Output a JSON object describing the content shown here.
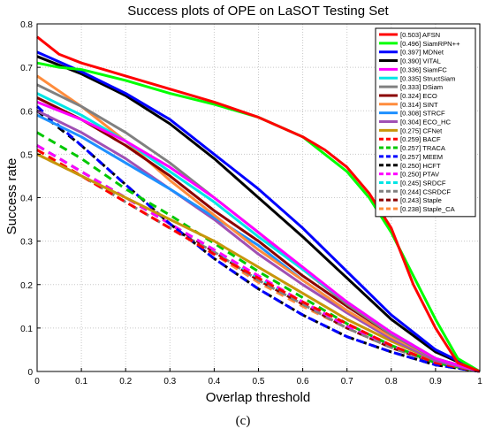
{
  "caption": "(c)",
  "chart_data": {
    "type": "line",
    "title": "Success plots of OPE on LaSOT Testing Set",
    "xlabel": "Overlap threshold",
    "ylabel": "Success rate",
    "xlim": [
      0,
      1
    ],
    "ylim": [
      0,
      0.8
    ],
    "xticks": [
      "0",
      "0.1",
      "0.2",
      "0.3",
      "0.4",
      "0.5",
      "0.6",
      "0.7",
      "0.8",
      "0.9",
      "1"
    ],
    "yticks": [
      "0",
      "0.1",
      "0.2",
      "0.3",
      "0.4",
      "0.5",
      "0.6",
      "0.7",
      "0.8"
    ],
    "grid": true,
    "legend_position": "top-right",
    "series": [
      {
        "name": "[0.503] AFSN",
        "color": "#ff0000",
        "dash": "solid",
        "x": [
          0,
          0.05,
          0.1,
          0.2,
          0.3,
          0.4,
          0.5,
          0.6,
          0.65,
          0.7,
          0.75,
          0.8,
          0.85,
          0.9,
          0.95,
          1
        ],
        "y": [
          0.77,
          0.73,
          0.71,
          0.68,
          0.65,
          0.62,
          0.585,
          0.54,
          0.51,
          0.47,
          0.41,
          0.33,
          0.2,
          0.1,
          0.02,
          0
        ]
      },
      {
        "name": "[0.496] SiamRPN++",
        "color": "#00ff00",
        "dash": "solid",
        "x": [
          0,
          0.05,
          0.1,
          0.2,
          0.3,
          0.4,
          0.5,
          0.6,
          0.65,
          0.7,
          0.75,
          0.8,
          0.85,
          0.9,
          0.95,
          1
        ],
        "y": [
          0.71,
          0.7,
          0.695,
          0.67,
          0.64,
          0.615,
          0.585,
          0.54,
          0.5,
          0.46,
          0.4,
          0.32,
          0.22,
          0.12,
          0.03,
          0
        ]
      },
      {
        "name": "[0.397] MDNet",
        "color": "#0000ff",
        "dash": "solid",
        "x": [
          0,
          0.1,
          0.2,
          0.3,
          0.4,
          0.5,
          0.6,
          0.7,
          0.8,
          0.9,
          1
        ],
        "y": [
          0.735,
          0.69,
          0.64,
          0.58,
          0.5,
          0.42,
          0.33,
          0.23,
          0.13,
          0.05,
          0
        ]
      },
      {
        "name": "[0.390] VITAL",
        "color": "#000000",
        "dash": "solid",
        "x": [
          0,
          0.1,
          0.2,
          0.3,
          0.4,
          0.5,
          0.6,
          0.7,
          0.8,
          0.9,
          1
        ],
        "y": [
          0.725,
          0.685,
          0.635,
          0.57,
          0.49,
          0.4,
          0.31,
          0.215,
          0.12,
          0.045,
          0
        ]
      },
      {
        "name": "[0.336] SiamFC",
        "color": "#ff00ff",
        "dash": "solid",
        "x": [
          0,
          0.1,
          0.2,
          0.3,
          0.4,
          0.5,
          0.6,
          0.7,
          0.8,
          0.9,
          1
        ],
        "y": [
          0.62,
          0.58,
          0.53,
          0.47,
          0.4,
          0.32,
          0.24,
          0.16,
          0.09,
          0.03,
          0
        ]
      },
      {
        "name": "[0.335] StructSiam",
        "color": "#00e5e5",
        "dash": "solid",
        "x": [
          0,
          0.1,
          0.2,
          0.3,
          0.4,
          0.5,
          0.6,
          0.7,
          0.8,
          0.9,
          1
        ],
        "y": [
          0.64,
          0.59,
          0.53,
          0.46,
          0.39,
          0.31,
          0.235,
          0.16,
          0.09,
          0.03,
          0
        ]
      },
      {
        "name": "[0.333] DSiam",
        "color": "#808080",
        "dash": "solid",
        "x": [
          0,
          0.1,
          0.2,
          0.3,
          0.4,
          0.5,
          0.6,
          0.7,
          0.8,
          0.9,
          1
        ],
        "y": [
          0.66,
          0.61,
          0.55,
          0.48,
          0.4,
          0.32,
          0.235,
          0.155,
          0.085,
          0.03,
          0
        ]
      },
      {
        "name": "[0.324] ECO",
        "color": "#8b0000",
        "dash": "solid",
        "x": [
          0,
          0.1,
          0.2,
          0.3,
          0.4,
          0.5,
          0.6,
          0.7,
          0.8,
          0.9,
          1
        ],
        "y": [
          0.63,
          0.58,
          0.52,
          0.45,
          0.37,
          0.3,
          0.22,
          0.15,
          0.085,
          0.03,
          0
        ]
      },
      {
        "name": "[0.314] SINT",
        "color": "#ff8c3c",
        "dash": "solid",
        "x": [
          0,
          0.1,
          0.2,
          0.3,
          0.4,
          0.5,
          0.6,
          0.7,
          0.8,
          0.9,
          1
        ],
        "y": [
          0.68,
          0.61,
          0.53,
          0.44,
          0.36,
          0.28,
          0.21,
          0.14,
          0.08,
          0.03,
          0
        ]
      },
      {
        "name": "[0.308] STRCF",
        "color": "#1e90ff",
        "dash": "solid",
        "x": [
          0,
          0.1,
          0.2,
          0.3,
          0.4,
          0.5,
          0.6,
          0.7,
          0.8,
          0.9,
          1
        ],
        "y": [
          0.59,
          0.54,
          0.48,
          0.42,
          0.355,
          0.29,
          0.21,
          0.14,
          0.08,
          0.03,
          0
        ]
      },
      {
        "name": "[0.304] ECO_HC",
        "color": "#a050b4",
        "dash": "solid",
        "x": [
          0,
          0.1,
          0.2,
          0.3,
          0.4,
          0.5,
          0.6,
          0.7,
          0.8,
          0.9,
          1
        ],
        "y": [
          0.6,
          0.55,
          0.49,
          0.42,
          0.35,
          0.27,
          0.2,
          0.135,
          0.075,
          0.025,
          0
        ]
      },
      {
        "name": "[0.275] CFNet",
        "color": "#c8960a",
        "dash": "solid",
        "x": [
          0,
          0.1,
          0.2,
          0.3,
          0.4,
          0.5,
          0.6,
          0.7,
          0.8,
          0.9,
          1
        ],
        "y": [
          0.5,
          0.45,
          0.4,
          0.35,
          0.3,
          0.24,
          0.18,
          0.12,
          0.07,
          0.025,
          0
        ]
      },
      {
        "name": "[0.259] BACF",
        "color": "#ff0000",
        "dash": "dashed",
        "x": [
          0,
          0.1,
          0.2,
          0.3,
          0.4,
          0.5,
          0.6,
          0.7,
          0.8,
          0.9,
          1
        ],
        "y": [
          0.51,
          0.45,
          0.39,
          0.33,
          0.27,
          0.215,
          0.16,
          0.11,
          0.06,
          0.02,
          0
        ]
      },
      {
        "name": "[0.257] TRACA",
        "color": "#00c800",
        "dash": "dashed",
        "x": [
          0,
          0.1,
          0.2,
          0.3,
          0.4,
          0.5,
          0.6,
          0.7,
          0.8,
          0.9,
          1
        ],
        "y": [
          0.55,
          0.49,
          0.42,
          0.36,
          0.295,
          0.23,
          0.17,
          0.11,
          0.06,
          0.02,
          0
        ]
      },
      {
        "name": "[0.257] MEEM",
        "color": "#0000ff",
        "dash": "dashed",
        "x": [
          0,
          0.1,
          0.2,
          0.3,
          0.4,
          0.5,
          0.6,
          0.7,
          0.8,
          0.9,
          1
        ],
        "y": [
          0.61,
          0.52,
          0.43,
          0.34,
          0.26,
          0.19,
          0.13,
          0.08,
          0.045,
          0.015,
          0
        ]
      },
      {
        "name": "[0.250] HCFT",
        "color": "#000000",
        "dash": "dashed",
        "x": [
          0,
          0.1,
          0.2,
          0.3,
          0.4,
          0.5,
          0.6,
          0.7,
          0.8,
          0.9,
          1
        ],
        "y": [
          0.6,
          0.52,
          0.43,
          0.34,
          0.26,
          0.19,
          0.13,
          0.08,
          0.045,
          0.015,
          0
        ]
      },
      {
        "name": "[0.250] PTAV",
        "color": "#ff00ff",
        "dash": "dashed",
        "x": [
          0,
          0.1,
          0.2,
          0.3,
          0.4,
          0.5,
          0.6,
          0.7,
          0.8,
          0.9,
          1
        ],
        "y": [
          0.52,
          0.46,
          0.4,
          0.34,
          0.28,
          0.22,
          0.16,
          0.105,
          0.06,
          0.02,
          0
        ]
      },
      {
        "name": "[0.245] SRDCF",
        "color": "#00e5e5",
        "dash": "dashed",
        "x": [
          0,
          0.1,
          0.2,
          0.3,
          0.4,
          0.5,
          0.6,
          0.7,
          0.8,
          0.9,
          1
        ],
        "y": [
          0.52,
          0.46,
          0.4,
          0.34,
          0.28,
          0.215,
          0.16,
          0.105,
          0.06,
          0.02,
          0
        ]
      },
      {
        "name": "[0.244] CSRDCF",
        "color": "#808080",
        "dash": "dashed",
        "x": [
          0,
          0.1,
          0.2,
          0.3,
          0.4,
          0.5,
          0.6,
          0.7,
          0.8,
          0.9,
          1
        ],
        "y": [
          0.5,
          0.45,
          0.39,
          0.33,
          0.275,
          0.21,
          0.155,
          0.1,
          0.055,
          0.02,
          0
        ]
      },
      {
        "name": "[0.243] Staple",
        "color": "#8b0000",
        "dash": "dashed",
        "x": [
          0,
          0.1,
          0.2,
          0.3,
          0.4,
          0.5,
          0.6,
          0.7,
          0.8,
          0.9,
          1
        ],
        "y": [
          0.52,
          0.46,
          0.4,
          0.34,
          0.275,
          0.21,
          0.155,
          0.1,
          0.055,
          0.02,
          0
        ]
      },
      {
        "name": "[0.238] Staple_CA",
        "color": "#ff8c3c",
        "dash": "dashed",
        "x": [
          0,
          0.1,
          0.2,
          0.3,
          0.4,
          0.5,
          0.6,
          0.7,
          0.8,
          0.9,
          1
        ],
        "y": [
          0.51,
          0.45,
          0.39,
          0.33,
          0.27,
          0.205,
          0.15,
          0.1,
          0.055,
          0.02,
          0
        ]
      }
    ]
  }
}
